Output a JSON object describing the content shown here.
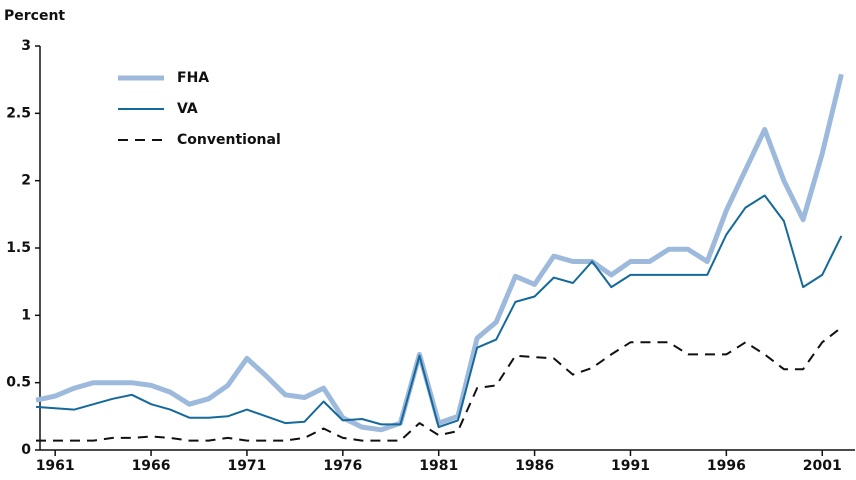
{
  "chart_data": {
    "type": "line",
    "y_label": "Percent",
    "x": [
      1960,
      1961,
      1962,
      1963,
      1964,
      1965,
      1966,
      1967,
      1968,
      1969,
      1970,
      1971,
      1972,
      1973,
      1974,
      1975,
      1976,
      1977,
      1978,
      1979,
      1980,
      1981,
      1982,
      1983,
      1984,
      1985,
      1986,
      1987,
      1988,
      1989,
      1990,
      1991,
      1992,
      1993,
      1994,
      1995,
      1996,
      1997,
      1998,
      1999,
      2000,
      2001,
      2002
    ],
    "series": [
      {
        "name": "FHA",
        "color": "#9db9dc",
        "width": 5,
        "dashed": false,
        "values": [
          0.37,
          0.4,
          0.46,
          0.5,
          0.5,
          0.5,
          0.48,
          0.43,
          0.34,
          0.38,
          0.48,
          0.68,
          0.55,
          0.41,
          0.39,
          0.46,
          0.24,
          0.17,
          0.15,
          0.2,
          0.71,
          0.2,
          0.25,
          0.83,
          0.95,
          1.29,
          1.23,
          1.44,
          1.4,
          1.4,
          1.3,
          1.4,
          1.4,
          1.49,
          1.49,
          1.4,
          1.78,
          2.08,
          2.38,
          2.0,
          1.71,
          2.2,
          2.79
        ]
      },
      {
        "name": "VA",
        "color": "#15699b",
        "width": 2,
        "dashed": false,
        "values": [
          0.32,
          0.31,
          0.3,
          0.34,
          0.38,
          0.41,
          0.34,
          0.3,
          0.24,
          0.24,
          0.25,
          0.3,
          0.25,
          0.2,
          0.21,
          0.36,
          0.22,
          0.23,
          0.19,
          0.19,
          0.7,
          0.17,
          0.22,
          0.76,
          0.82,
          1.1,
          1.14,
          1.28,
          1.24,
          1.4,
          1.21,
          1.3,
          1.3,
          1.3,
          1.3,
          1.3,
          1.6,
          1.8,
          1.89,
          1.7,
          1.21,
          1.3,
          1.59
        ]
      },
      {
        "name": "Conventional",
        "color": "#111111",
        "width": 2,
        "dashed": true,
        "values": [
          0.07,
          0.07,
          0.07,
          0.07,
          0.09,
          0.09,
          0.1,
          0.09,
          0.07,
          0.07,
          0.09,
          0.07,
          0.07,
          0.07,
          0.09,
          0.16,
          0.09,
          0.07,
          0.07,
          0.07,
          0.2,
          0.11,
          0.14,
          0.46,
          0.48,
          0.7,
          0.69,
          0.68,
          0.56,
          0.61,
          0.71,
          0.8,
          0.8,
          0.8,
          0.71,
          0.71,
          0.71,
          0.8,
          0.71,
          0.6,
          0.6,
          0.8,
          0.91
        ]
      }
    ],
    "xlim": [
      1960,
      2002.5
    ],
    "xticks": [
      1961,
      1966,
      1971,
      1976,
      1981,
      1986,
      1991,
      1996,
      2001
    ],
    "ylim": [
      0,
      3
    ],
    "yticks": [
      0,
      0.5,
      1,
      1.5,
      2,
      2.5,
      3
    ],
    "grid": false,
    "legend": "top-left"
  }
}
